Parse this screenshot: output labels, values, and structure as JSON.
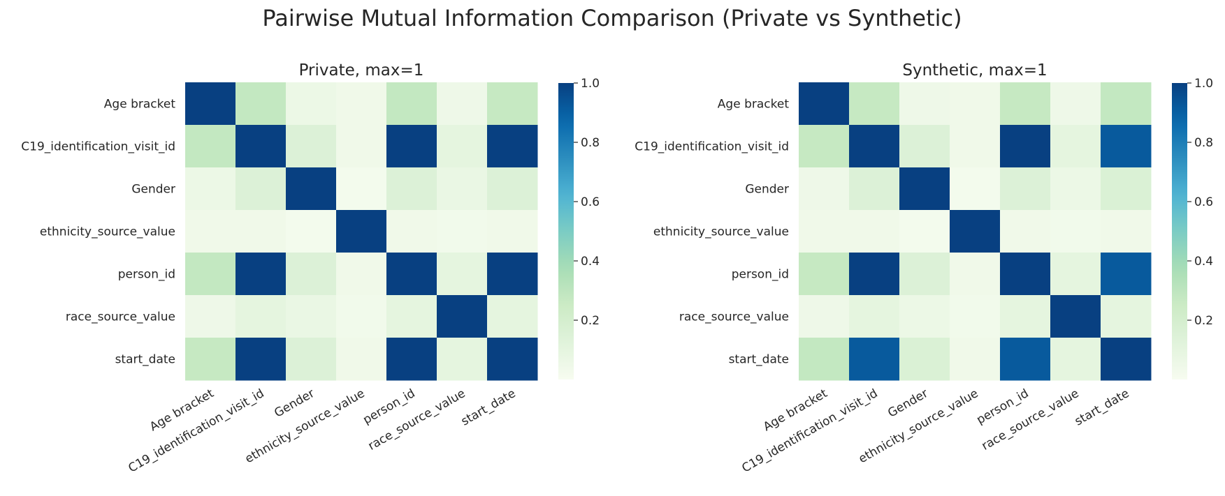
{
  "figure_title": "Pairwise Mutual Information Comparison (Private vs Synthetic)",
  "colormap": [
    "#f7fcf0",
    "#e0f3db",
    "#ccebc5",
    "#a8ddb5",
    "#7bccc4",
    "#4eb3d3",
    "#2b8cbe",
    "#0868ac",
    "#084081"
  ],
  "chart_data": [
    {
      "type": "heatmap",
      "title": "Private, max=1",
      "variables": [
        "Age bracket",
        "C19_identification_visit_id",
        "Gender",
        "ethnicity_source_value",
        "person_id",
        "race_source_value",
        "start_date"
      ],
      "matrix": [
        [
          1.0,
          0.28,
          0.06,
          0.04,
          0.28,
          0.05,
          0.27
        ],
        [
          0.28,
          1.0,
          0.15,
          0.04,
          1.0,
          0.1,
          1.0
        ],
        [
          0.06,
          0.15,
          1.0,
          0.02,
          0.15,
          0.07,
          0.15
        ],
        [
          0.04,
          0.04,
          0.02,
          1.0,
          0.04,
          0.03,
          0.04
        ],
        [
          0.28,
          1.0,
          0.15,
          0.04,
          1.0,
          0.1,
          1.0
        ],
        [
          0.05,
          0.1,
          0.07,
          0.03,
          0.1,
          1.0,
          0.1
        ],
        [
          0.27,
          1.0,
          0.15,
          0.04,
          1.0,
          0.1,
          1.0
        ]
      ],
      "vmin": 0.0,
      "vmax": 1.0,
      "colorbar_ticks": [
        "0.2",
        "0.4",
        "0.6",
        "0.8",
        "1.0"
      ],
      "colorbar_tick_values": [
        0.2,
        0.4,
        0.6,
        0.8,
        1.0
      ]
    },
    {
      "type": "heatmap",
      "title": "Synthetic, max=1",
      "variables": [
        "Age bracket",
        "C19_identification_visit_id",
        "Gender",
        "ethnicity_source_value",
        "person_id",
        "race_source_value",
        "start_date"
      ],
      "matrix": [
        [
          1.0,
          0.27,
          0.05,
          0.04,
          0.27,
          0.05,
          0.28
        ],
        [
          0.27,
          1.0,
          0.15,
          0.04,
          1.0,
          0.1,
          0.92
        ],
        [
          0.05,
          0.15,
          1.0,
          0.02,
          0.15,
          0.06,
          0.16
        ],
        [
          0.04,
          0.04,
          0.02,
          1.0,
          0.04,
          0.03,
          0.04
        ],
        [
          0.27,
          1.0,
          0.15,
          0.04,
          1.0,
          0.1,
          0.92
        ],
        [
          0.05,
          0.1,
          0.06,
          0.03,
          0.1,
          1.0,
          0.1
        ],
        [
          0.28,
          0.92,
          0.16,
          0.04,
          0.92,
          0.1,
          1.0
        ]
      ],
      "vmin": 0.0,
      "vmax": 1.0,
      "colorbar_ticks": [
        "0.2",
        "0.4",
        "0.6",
        "0.8",
        "1.0"
      ],
      "colorbar_tick_values": [
        0.2,
        0.4,
        0.6,
        0.8,
        1.0
      ]
    }
  ]
}
